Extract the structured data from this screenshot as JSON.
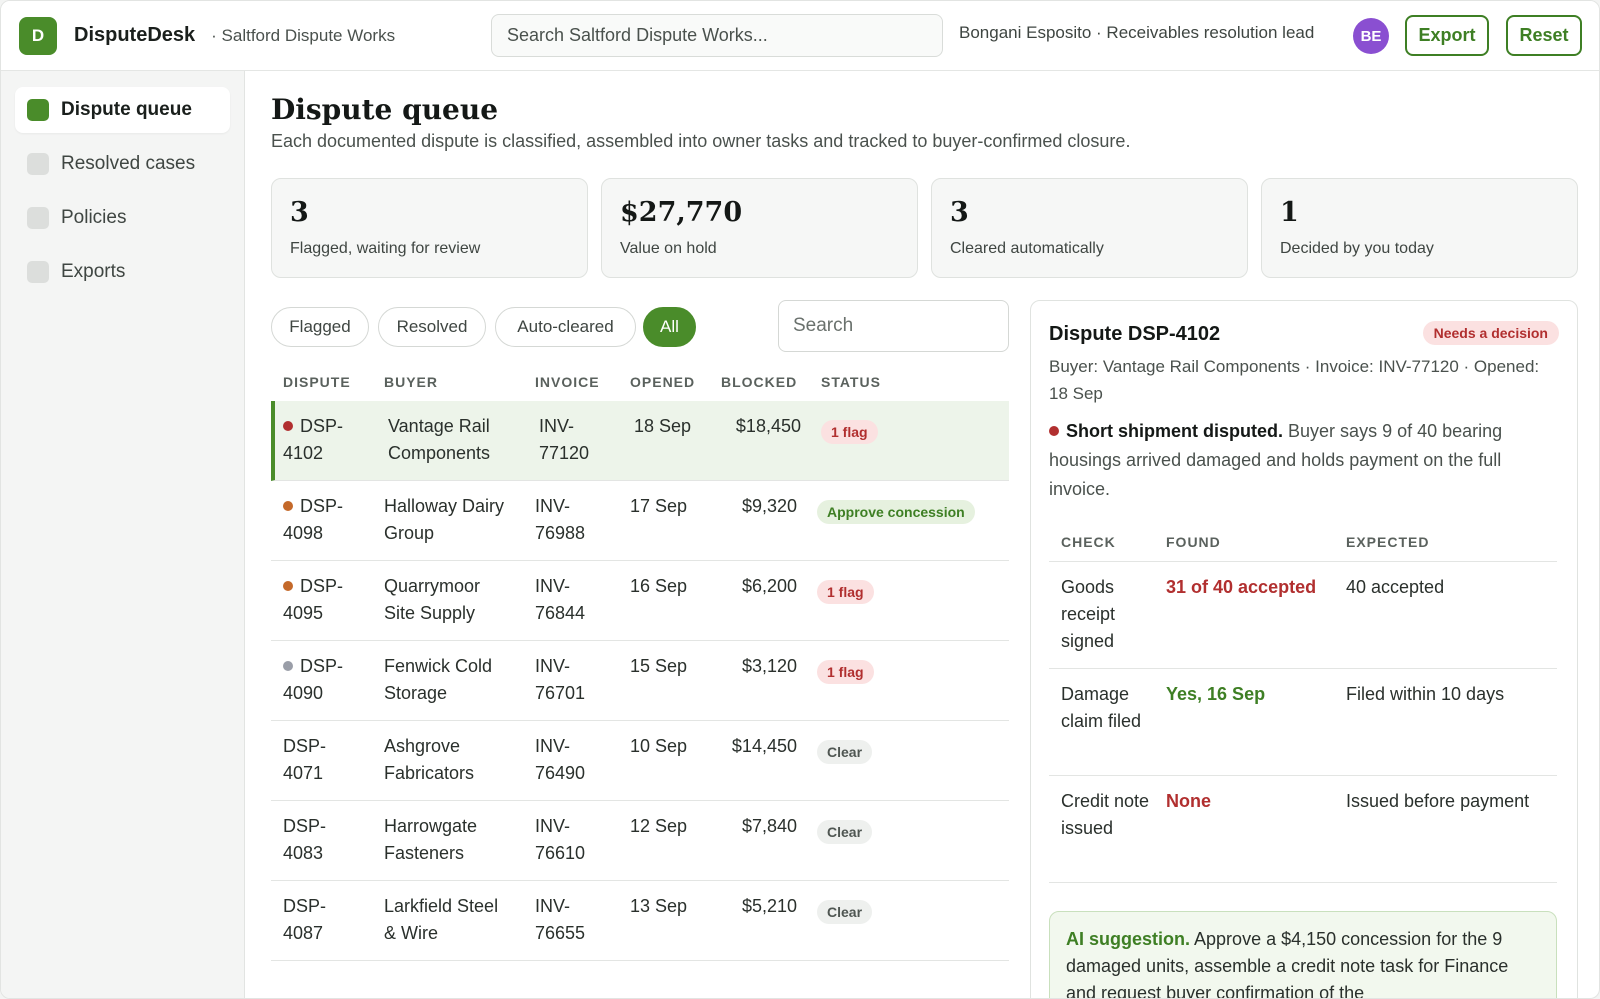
{
  "app": {
    "logo_letter": "D",
    "name": "DisputeDesk",
    "workspace": "· Saltford Dispute Works",
    "search_placeholder": "Search Saltford Dispute Works...",
    "user": "Bongani Esposito · Receivables resolution lead",
    "avatar_initials": "BE",
    "export_label": "Export",
    "reset_label": "Reset",
    "brand_color": "#4a8c2a"
  },
  "sidebar": {
    "items": [
      {
        "label": "Dispute queue",
        "active": true
      },
      {
        "label": "Resolved cases",
        "active": false
      },
      {
        "label": "Policies",
        "active": false
      },
      {
        "label": "Exports",
        "active": false
      }
    ]
  },
  "page": {
    "title": "Dispute queue",
    "subtitle": "Each documented dispute is classified, assembled into owner tasks and tracked to buyer-confirmed closure."
  },
  "stats": [
    {
      "value": "3",
      "label": "Flagged, waiting for review"
    },
    {
      "value": "$27,770",
      "label": "Value on hold"
    },
    {
      "value": "3",
      "label": "Cleared automatically"
    },
    {
      "value": "1",
      "label": "Decided by you today"
    }
  ],
  "filters": {
    "chips": [
      "Flagged",
      "Resolved",
      "Auto-cleared",
      "All"
    ],
    "active": "All",
    "search_placeholder": "Search"
  },
  "table": {
    "headers": [
      "DISPUTE",
      "BUYER",
      "INVOICE",
      "OPENED",
      "BLOCKED",
      "STATUS"
    ],
    "rows": [
      {
        "id_a": "DSP-",
        "id_b": "4102",
        "buyer_a": "Vantage Rail",
        "buyer_b": "Components",
        "inv_a": "INV-",
        "inv_b": "77120",
        "opened": "18 Sep",
        "blocked": "$18,450",
        "status": "1 flag",
        "status_type": "flag",
        "dot": "#b12f2f",
        "selected": true
      },
      {
        "id_a": "DSP-",
        "id_b": "4098",
        "buyer_a": "Halloway Dairy",
        "buyer_b": "Group",
        "inv_a": "INV-",
        "inv_b": "76988",
        "opened": "17 Sep",
        "blocked": "$9,320",
        "status": "Approve concession",
        "status_type": "approve",
        "dot": "#c4692a",
        "selected": false
      },
      {
        "id_a": "DSP-",
        "id_b": "4095",
        "buyer_a": "Quarrymoor",
        "buyer_b": "Site Supply",
        "inv_a": "INV-",
        "inv_b": "76844",
        "opened": "16 Sep",
        "blocked": "$6,200",
        "status": "1 flag",
        "status_type": "flag",
        "dot": "#c4692a",
        "selected": false
      },
      {
        "id_a": "DSP-",
        "id_b": "4090",
        "buyer_a": "Fenwick Cold",
        "buyer_b": "Storage",
        "inv_a": "INV-",
        "inv_b": "76701",
        "opened": "15 Sep",
        "blocked": "$3,120",
        "status": "1 flag",
        "status_type": "flag",
        "dot": "#9a9ea8",
        "selected": false
      },
      {
        "id_a": "DSP-",
        "id_b": "4071",
        "buyer_a": "Ashgrove",
        "buyer_b": "Fabricators",
        "inv_a": "INV-",
        "inv_b": "76490",
        "opened": "10 Sep",
        "blocked": "$14,450",
        "status": "Clear",
        "status_type": "clear",
        "dot": "",
        "selected": false
      },
      {
        "id_a": "DSP-",
        "id_b": "4083",
        "buyer_a": "Harrowgate",
        "buyer_b": "Fasteners",
        "inv_a": "INV-",
        "inv_b": "76610",
        "opened": "12 Sep",
        "blocked": "$7,840",
        "status": "Clear",
        "status_type": "clear",
        "dot": "",
        "selected": false
      },
      {
        "id_a": "DSP-",
        "id_b": "4087",
        "buyer_a": "Larkfield Steel",
        "buyer_b": "& Wire",
        "inv_a": "INV-",
        "inv_b": "76655",
        "opened": "13 Sep",
        "blocked": "$5,210",
        "status": "Clear",
        "status_type": "clear",
        "dot": "",
        "selected": false
      }
    ]
  },
  "detail": {
    "title": "Dispute DSP-4102",
    "badge": "Needs a decision",
    "meta": "Buyer: Vantage Rail Components · Invoice: INV-77120 · Opened: 18 Sep",
    "issue_title": "Short shipment disputed.",
    "issue_text": "Buyer says 9 of 40 bearing housings arrived damaged and holds payment on the full invoice.",
    "check_headers": [
      "CHECK",
      "FOUND",
      "EXPECTED"
    ],
    "checks": [
      {
        "check": "Goods receipt signed",
        "found": "31 of 40 accepted",
        "found_type": "bad",
        "expected": "40 accepted"
      },
      {
        "check": "Damage claim filed",
        "found": "Yes, 16 Sep",
        "found_type": "good",
        "expected": "Filed within 10 days"
      },
      {
        "check": "Credit note issued",
        "found": "None",
        "found_type": "bad",
        "expected": "Issued before payment"
      }
    ],
    "ai_label": "AI suggestion.",
    "ai_text": "Approve a $4,150 concession for the 9 damaged units, assemble a credit note task for Finance and request buyer confirmation of the"
  }
}
